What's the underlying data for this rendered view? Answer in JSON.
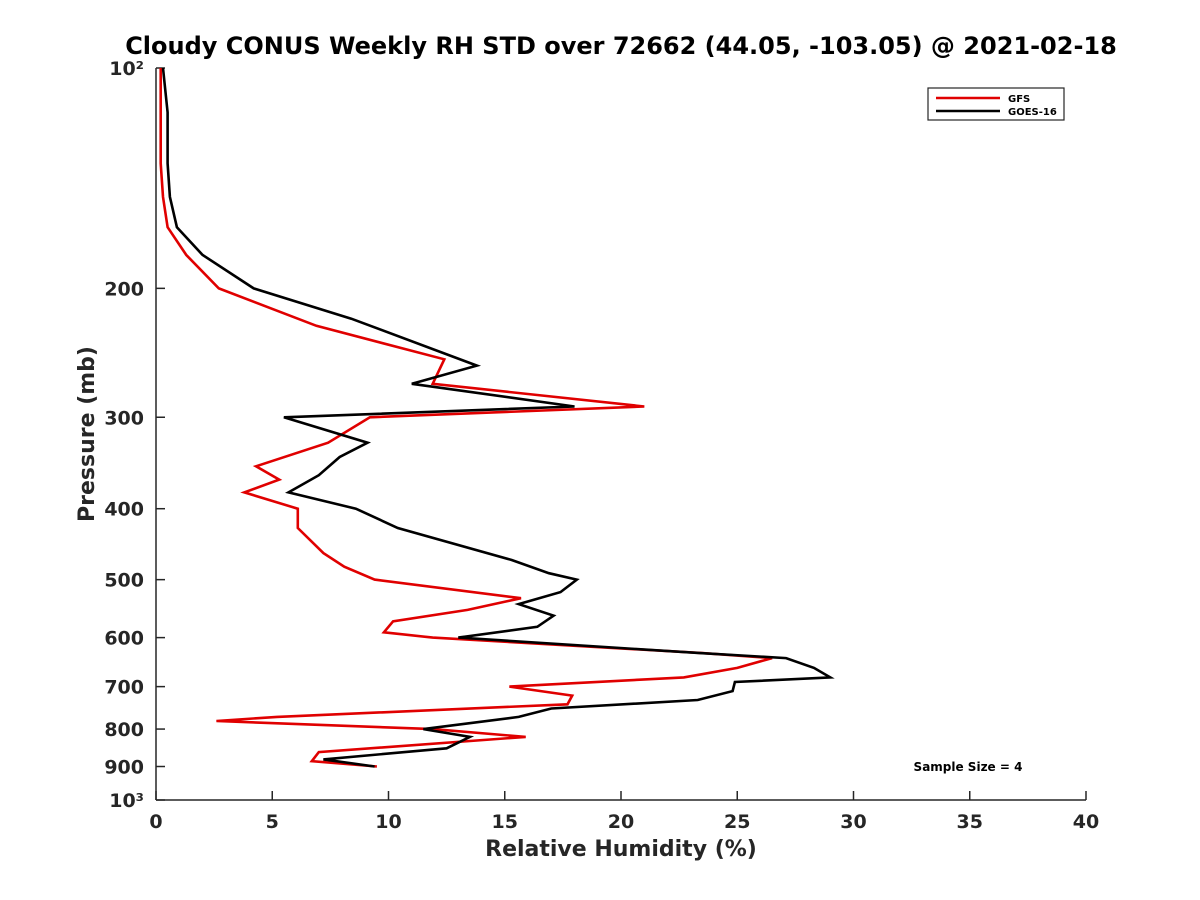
{
  "chart_data": {
    "type": "line",
    "title": "Cloudy CONUS Weekly RH STD over 72662 (44.05, -103.05) @ 2021-02-18",
    "xlabel": "Relative Humidity (%)",
    "ylabel": "Pressure (mb)",
    "xlim": [
      0,
      40
    ],
    "ylim": [
      100,
      1000
    ],
    "yscale": "log",
    "y_reversed": true,
    "grid": false,
    "legend_position": "top-right",
    "x_ticks": [
      0,
      5,
      10,
      15,
      20,
      25,
      30,
      35,
      40
    ],
    "x_tick_labels": [
      "0",
      "5",
      "10",
      "15",
      "20",
      "25",
      "30",
      "35",
      "40"
    ],
    "y_ticks": [
      100,
      200,
      300,
      400,
      500,
      600,
      700,
      800,
      900,
      1000
    ],
    "y_tick_labels": [
      "10²",
      "200",
      "300",
      "400",
      "500",
      "600",
      "700",
      "800",
      "900",
      "10³"
    ],
    "annotation": "Sample Size = 4",
    "series": [
      {
        "name": "GFS",
        "color": "#e00000",
        "points": [
          [
            0.2,
            100
          ],
          [
            0.2,
            115
          ],
          [
            0.2,
            135
          ],
          [
            0.3,
            150
          ],
          [
            0.5,
            165
          ],
          [
            1.3,
            180
          ],
          [
            2.7,
            200
          ],
          [
            6.9,
            225
          ],
          [
            12.4,
            250
          ],
          [
            11.9,
            270
          ],
          [
            21.0,
            290
          ],
          [
            9.2,
            300
          ],
          [
            7.4,
            325
          ],
          [
            4.3,
            350
          ],
          [
            5.3,
            365
          ],
          [
            3.8,
            380
          ],
          [
            6.1,
            400
          ],
          [
            6.1,
            425
          ],
          [
            7.2,
            460
          ],
          [
            8.1,
            480
          ],
          [
            9.4,
            500
          ],
          [
            15.7,
            530
          ],
          [
            13.4,
            550
          ],
          [
            10.2,
            570
          ],
          [
            9.8,
            590
          ],
          [
            11.9,
            600
          ],
          [
            23.5,
            630
          ],
          [
            26.5,
            640
          ],
          [
            25.0,
            660
          ],
          [
            22.7,
            680
          ],
          [
            15.2,
            700
          ],
          [
            17.9,
            720
          ],
          [
            17.7,
            740
          ],
          [
            5.2,
            770
          ],
          [
            2.6,
            780
          ],
          [
            11.9,
            800
          ],
          [
            15.9,
            820
          ],
          [
            7.0,
            860
          ],
          [
            6.7,
            885
          ],
          [
            9.5,
            900
          ]
        ]
      },
      {
        "name": "GOES-16",
        "color": "#000000",
        "points": [
          [
            0.3,
            100
          ],
          [
            0.5,
            115
          ],
          [
            0.5,
            135
          ],
          [
            0.6,
            150
          ],
          [
            0.9,
            165
          ],
          [
            2.0,
            180
          ],
          [
            4.2,
            200
          ],
          [
            8.4,
            220
          ],
          [
            13.8,
            255
          ],
          [
            11.0,
            270
          ],
          [
            18.0,
            290
          ],
          [
            5.5,
            300
          ],
          [
            9.1,
            325
          ],
          [
            7.9,
            340
          ],
          [
            7.0,
            360
          ],
          [
            5.7,
            380
          ],
          [
            8.6,
            400
          ],
          [
            10.4,
            425
          ],
          [
            15.3,
            470
          ],
          [
            16.9,
            490
          ],
          [
            18.1,
            500
          ],
          [
            17.4,
            520
          ],
          [
            15.6,
            540
          ],
          [
            17.1,
            560
          ],
          [
            16.4,
            580
          ],
          [
            13.0,
            600
          ],
          [
            23.4,
            630
          ],
          [
            27.1,
            640
          ],
          [
            28.3,
            660
          ],
          [
            29.0,
            680
          ],
          [
            24.9,
            690
          ],
          [
            24.8,
            710
          ],
          [
            23.3,
            730
          ],
          [
            17.0,
            750
          ],
          [
            15.6,
            770
          ],
          [
            11.5,
            800
          ],
          [
            13.5,
            820
          ],
          [
            12.5,
            850
          ],
          [
            7.2,
            880
          ],
          [
            9.4,
            900
          ]
        ]
      }
    ]
  }
}
